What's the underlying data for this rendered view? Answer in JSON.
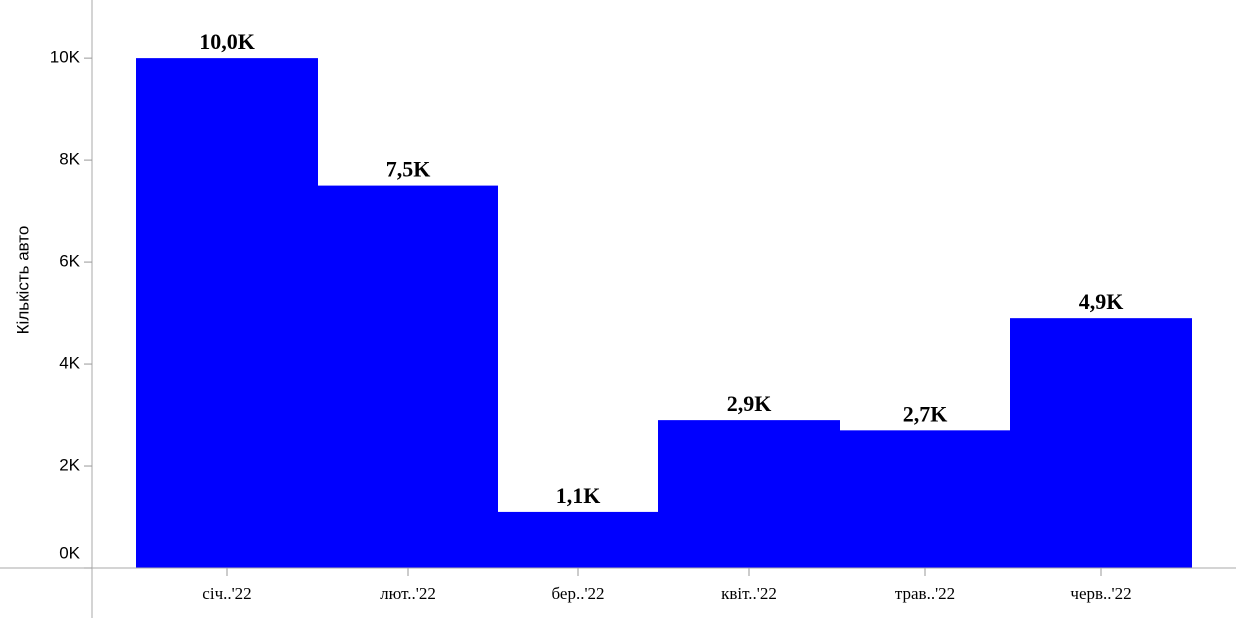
{
  "chart_data": {
    "type": "bar",
    "y_label": "Кількість авто",
    "categories": [
      "січ..'22",
      "лют..'22",
      "бер..'22",
      "квіт..'22",
      "трав..'22",
      "черв..'22"
    ],
    "values": [
      10000,
      7500,
      1100,
      2900,
      2700,
      4900
    ],
    "value_labels": [
      "10,0K",
      "7,5K",
      "1,1K",
      "2,9K",
      "2,7K",
      "4,9K"
    ],
    "color": "#0000ff",
    "ylim": [
      0,
      11140
    ],
    "yticks": [
      {
        "value": 0,
        "label": "0K"
      },
      {
        "value": 2000,
        "label": "2K"
      },
      {
        "value": 4000,
        "label": "4K"
      },
      {
        "value": 6000,
        "label": "6K"
      },
      {
        "value": 8000,
        "label": "8K"
      },
      {
        "value": 10000,
        "label": "10K"
      }
    ]
  }
}
